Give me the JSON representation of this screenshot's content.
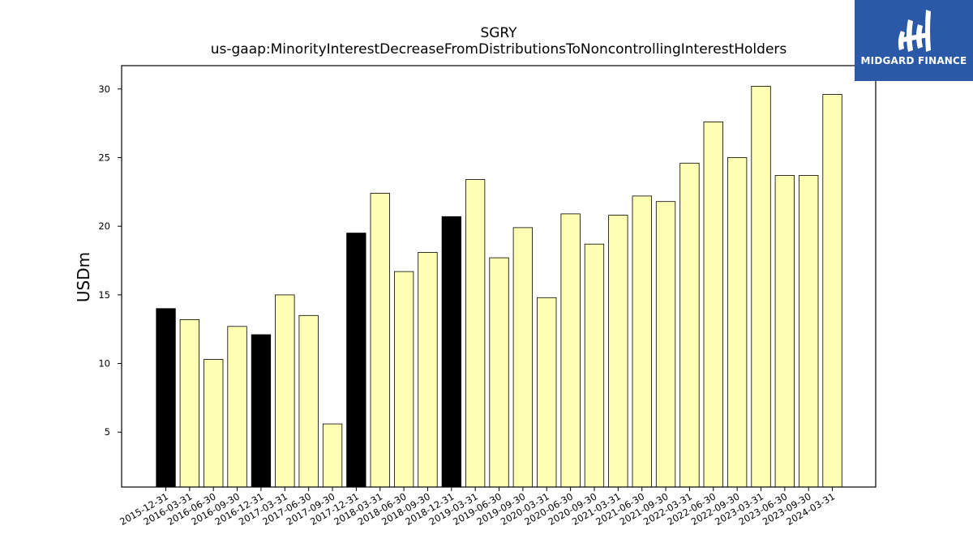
{
  "chart_data": {
    "type": "bar",
    "title": "SGRY",
    "subtitle": "us-gaap:MinorityInterestDecreaseFromDistributionsToNoncontrollingInterestHolders",
    "xlabel": "",
    "ylabel": "USDm",
    "ylim": [
      1,
      31.7
    ],
    "yticks": [
      5,
      10,
      15,
      20,
      25,
      30
    ],
    "grid": false,
    "categories": [
      "2015-12-31",
      "2016-03-31",
      "2016-06-30",
      "2016-09-30",
      "2016-12-31",
      "2017-03-31",
      "2017-06-30",
      "2017-09-30",
      "2017-12-31",
      "2018-03-31",
      "2018-06-30",
      "2018-09-30",
      "2018-12-31",
      "2019-03-31",
      "2019-06-30",
      "2019-09-30",
      "2020-03-31",
      "2020-06-30",
      "2020-09-30",
      "2021-03-31",
      "2021-06-30",
      "2021-09-30",
      "2022-03-31",
      "2022-06-30",
      "2022-09-30",
      "2023-03-31",
      "2023-06-30",
      "2023-09-30",
      "2024-03-31"
    ],
    "values": [
      14.0,
      13.2,
      10.3,
      12.7,
      12.1,
      15.0,
      13.5,
      5.6,
      19.5,
      22.4,
      16.7,
      18.1,
      20.7,
      23.4,
      17.7,
      19.9,
      14.8,
      20.9,
      18.7,
      20.8,
      22.2,
      21.8,
      24.6,
      27.6,
      25.0,
      30.2,
      23.7,
      23.7,
      29.6
    ],
    "highlight": [
      true,
      false,
      false,
      false,
      true,
      false,
      false,
      false,
      true,
      false,
      false,
      false,
      true,
      false,
      false,
      false,
      false,
      false,
      false,
      false,
      false,
      false,
      false,
      false,
      false,
      false,
      false,
      false,
      false
    ],
    "colors": {
      "highlight": "#000000",
      "normal": "#ffffb3",
      "edge": "#000000"
    }
  },
  "logo": {
    "text": "MIDGARD FINANCE",
    "background": "#2b59a8",
    "foreground": "#ffffff"
  }
}
